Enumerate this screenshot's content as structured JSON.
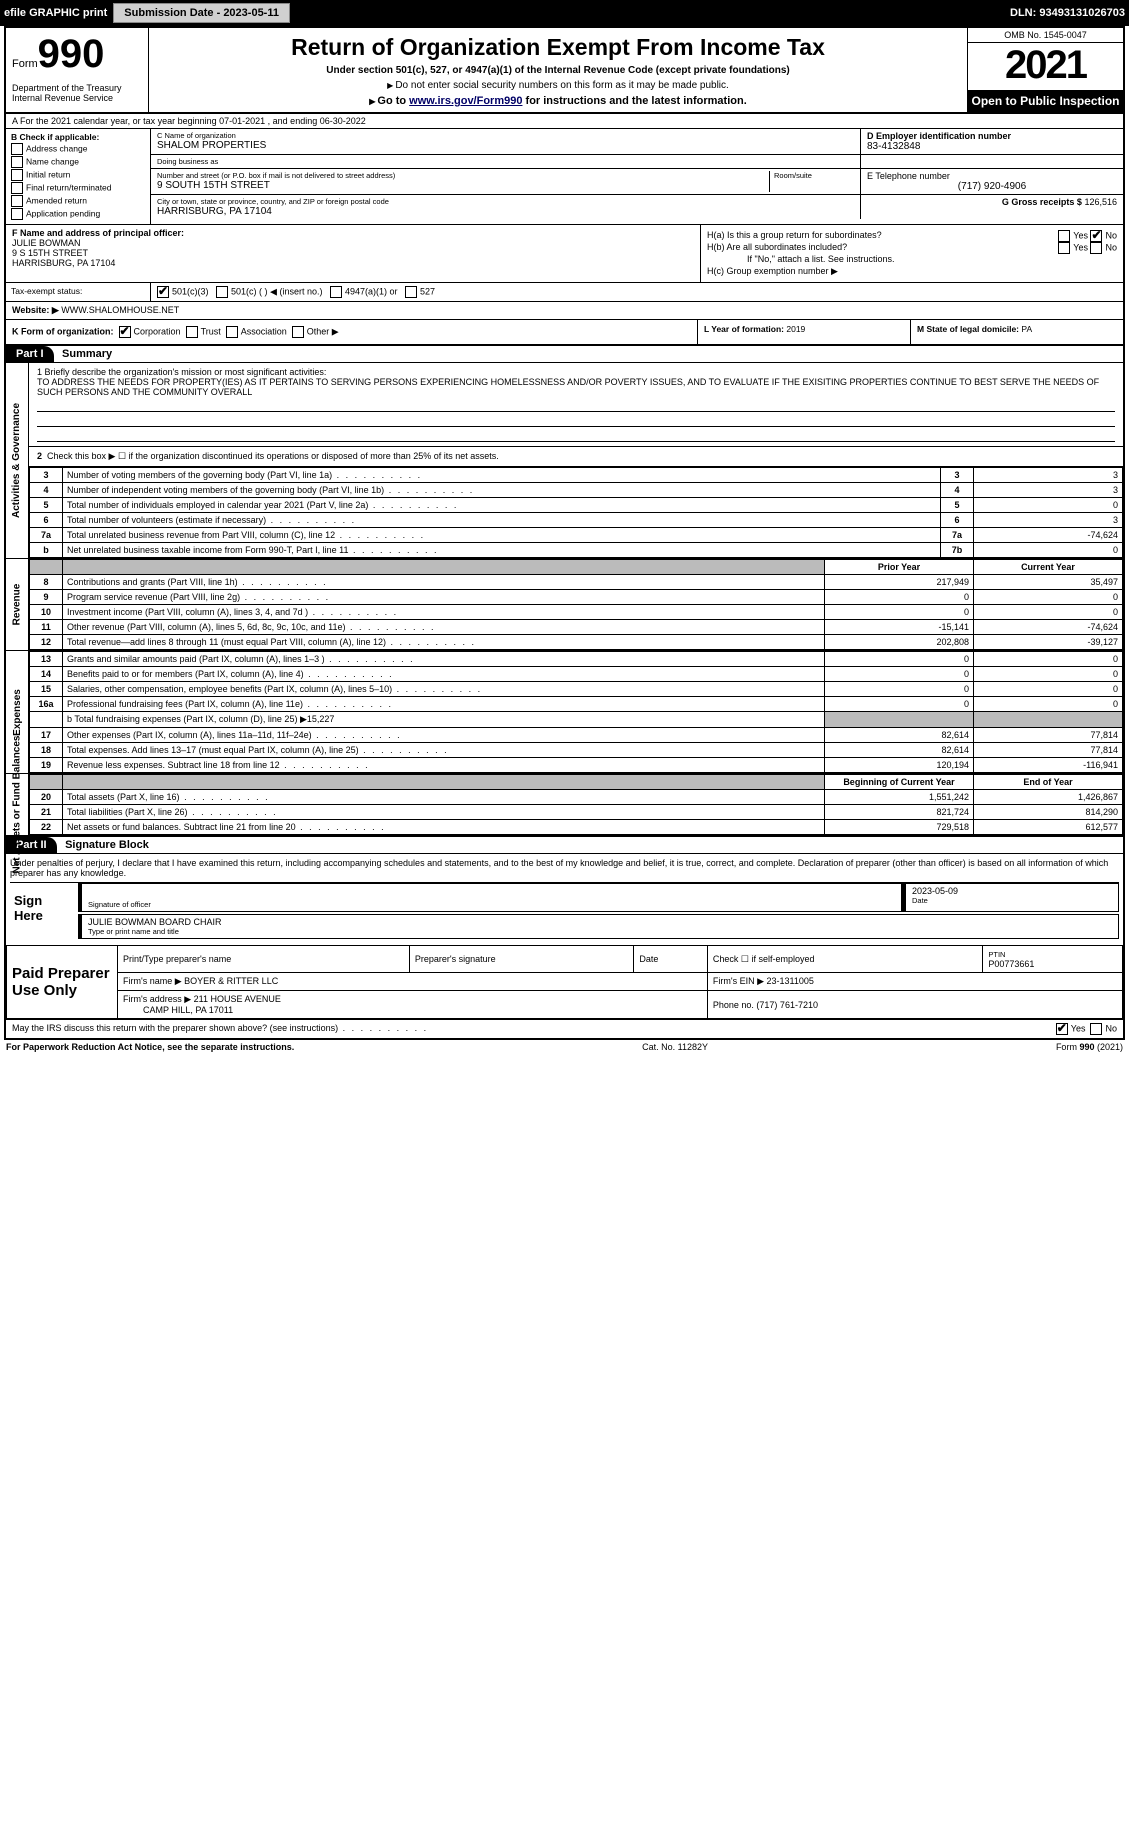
{
  "topbar": {
    "efile": "efile GRAPHIC print",
    "submission_btn": "Submission Date - 2023-05-11",
    "dln": "DLN: 93493131026703"
  },
  "header": {
    "form_word": "Form",
    "form_num": "990",
    "dept": "Department of the Treasury Internal Revenue Service",
    "title": "Return of Organization Exempt From Income Tax",
    "sub1": "Under section 501(c), 527, or 4947(a)(1) of the Internal Revenue Code (except private foundations)",
    "sub2": "Do not enter social security numbers on this form as it may be made public.",
    "sub3_pre": "Go to ",
    "sub3_link": "www.irs.gov/Form990",
    "sub3_post": " for instructions and the latest information.",
    "omb": "OMB No. 1545-0047",
    "year": "2021",
    "inspection": "Open to Public Inspection"
  },
  "row_a": "A For the 2021 calendar year, or tax year beginning 07-01-2021   , and ending 06-30-2022",
  "col_b": {
    "head": "B Check if applicable:",
    "opts": [
      "Address change",
      "Name change",
      "Initial return",
      "Final return/terminated",
      "Amended return",
      "Application pending"
    ]
  },
  "c": {
    "name_lbl": "C Name of organization",
    "name": "SHALOM PROPERTIES",
    "dba_lbl": "Doing business as",
    "dba": "",
    "street_lbl": "Number and street (or P.O. box if mail is not delivered to street address)",
    "room_lbl": "Room/suite",
    "street": "9 SOUTH 15TH STREET",
    "city_lbl": "City or town, state or province, country, and ZIP or foreign postal code",
    "city": "HARRISBURG, PA  17104"
  },
  "d": {
    "lbl": "D Employer identification number",
    "val": "83-4132848"
  },
  "e": {
    "lbl": "E Telephone number",
    "val": "(717) 920-4906"
  },
  "g": {
    "lbl": "G Gross receipts $",
    "val": "126,516"
  },
  "f": {
    "lbl": "F  Name and address of principal officer:",
    "name": "JULIE BOWMAN",
    "addr1": "9 S 15TH STREET",
    "addr2": "HARRISBURG, PA  17104"
  },
  "h": {
    "a": "H(a)  Is this a group return for subordinates?",
    "b": "H(b)  Are all subordinates included?",
    "b_note": "If \"No,\" attach a list. See instructions.",
    "c": "H(c)  Group exemption number ▶",
    "yes": "Yes",
    "no": "No"
  },
  "i": {
    "lbl": "Tax-exempt status:",
    "c3": "501(c)(3)",
    "c": "501(c) (  ) ◀ (insert no.)",
    "a1": "4947(a)(1) or",
    "s527": "527"
  },
  "j": {
    "lbl": "Website: ▶",
    "val": "WWW.SHALOMHOUSE.NET"
  },
  "k": {
    "lbl": "K Form of organization:",
    "corp": "Corporation",
    "trust": "Trust",
    "assoc": "Association",
    "other": "Other ▶"
  },
  "l": {
    "lbl": "L Year of formation:",
    "val": "2019"
  },
  "m": {
    "lbl": "M State of legal domicile:",
    "val": "PA"
  },
  "part1": {
    "tag": "Part I",
    "title": "Summary"
  },
  "mission": {
    "lbl": "1 Briefly describe the organization's mission or most significant activities:",
    "text": "TO ADDRESS THE NEEDS FOR PROPERTY(IES) AS IT PERTAINS TO SERVING PERSONS EXPERIENCING HOMELESSNESS AND/OR POVERTY ISSUES, AND TO EVALUATE IF THE EXISITING PROPERTIES CONTINUE TO BEST SERVE THE NEEDS OF SUCH PERSONS AND THE COMMUNITY OVERALL"
  },
  "line2": "Check this box ▶ ☐  if the organization discontinued its operations or disposed of more than 25% of its net assets.",
  "side_labels": {
    "gov": "Activities & Governance",
    "rev": "Revenue",
    "exp": "Expenses",
    "net": "Net Assets or Fund Balances"
  },
  "gov_rows": [
    {
      "n": "3",
      "d": "Number of voting members of the governing body (Part VI, line 1a)",
      "b": "3",
      "v": "3"
    },
    {
      "n": "4",
      "d": "Number of independent voting members of the governing body (Part VI, line 1b)",
      "b": "4",
      "v": "3"
    },
    {
      "n": "5",
      "d": "Total number of individuals employed in calendar year 2021 (Part V, line 2a)",
      "b": "5",
      "v": "0"
    },
    {
      "n": "6",
      "d": "Total number of volunteers (estimate if necessary)",
      "b": "6",
      "v": "3"
    },
    {
      "n": "7a",
      "d": "Total unrelated business revenue from Part VIII, column (C), line 12",
      "b": "7a",
      "v": "-74,624"
    },
    {
      "n": "b",
      "d": "Net unrelated business taxable income from Form 990-T, Part I, line 11",
      "b": "7b",
      "v": "0"
    }
  ],
  "py_hdr": "Prior Year",
  "cy_hdr": "Current Year",
  "rev_rows": [
    {
      "n": "8",
      "d": "Contributions and grants (Part VIII, line 1h)",
      "p": "217,949",
      "c": "35,497"
    },
    {
      "n": "9",
      "d": "Program service revenue (Part VIII, line 2g)",
      "p": "0",
      "c": "0"
    },
    {
      "n": "10",
      "d": "Investment income (Part VIII, column (A), lines 3, 4, and 7d )",
      "p": "0",
      "c": "0"
    },
    {
      "n": "11",
      "d": "Other revenue (Part VIII, column (A), lines 5, 6d, 8c, 9c, 10c, and 11e)",
      "p": "-15,141",
      "c": "-74,624"
    },
    {
      "n": "12",
      "d": "Total revenue—add lines 8 through 11 (must equal Part VIII, column (A), line 12)",
      "p": "202,808",
      "c": "-39,127"
    }
  ],
  "exp_rows": [
    {
      "n": "13",
      "d": "Grants and similar amounts paid (Part IX, column (A), lines 1–3 )",
      "p": "0",
      "c": "0"
    },
    {
      "n": "14",
      "d": "Benefits paid to or for members (Part IX, column (A), line 4)",
      "p": "0",
      "c": "0"
    },
    {
      "n": "15",
      "d": "Salaries, other compensation, employee benefits (Part IX, column (A), lines 5–10)",
      "p": "0",
      "c": "0"
    },
    {
      "n": "16a",
      "d": "Professional fundraising fees (Part IX, column (A), line 11e)",
      "p": "0",
      "c": "0"
    }
  ],
  "exp_b": "b  Total fundraising expenses (Part IX, column (D), line 25) ▶15,227",
  "exp_rows2": [
    {
      "n": "17",
      "d": "Other expenses (Part IX, column (A), lines 11a–11d, 11f–24e)",
      "p": "82,614",
      "c": "77,814"
    },
    {
      "n": "18",
      "d": "Total expenses. Add lines 13–17 (must equal Part IX, column (A), line 25)",
      "p": "82,614",
      "c": "77,814"
    },
    {
      "n": "19",
      "d": "Revenue less expenses. Subtract line 18 from line 12",
      "p": "120,194",
      "c": "-116,941"
    }
  ],
  "boy_hdr": "Beginning of Current Year",
  "eoy_hdr": "End of Year",
  "net_rows": [
    {
      "n": "20",
      "d": "Total assets (Part X, line 16)",
      "p": "1,551,242",
      "c": "1,426,867"
    },
    {
      "n": "21",
      "d": "Total liabilities (Part X, line 26)",
      "p": "821,724",
      "c": "814,290"
    },
    {
      "n": "22",
      "d": "Net assets or fund balances. Subtract line 21 from line 20",
      "p": "729,518",
      "c": "612,577"
    }
  ],
  "part2": {
    "tag": "Part II",
    "title": "Signature Block"
  },
  "sig": {
    "perjury": "Under penalties of perjury, I declare that I have examined this return, including accompanying schedules and statements, and to the best of my knowledge and belief, it is true, correct, and complete. Declaration of preparer (other than officer) is based on all information of which preparer has any knowledge.",
    "here": "Sign Here",
    "officer_sig": "Signature of officer",
    "date_lbl": "Date",
    "date": "2023-05-09",
    "name": "JULIE BOWMAN BOARD CHAIR",
    "type_lbl": "Type or print name and title"
  },
  "paid": {
    "title": "Paid Preparer Use Only",
    "h1": "Print/Type preparer's name",
    "h2": "Preparer's signature",
    "h3": "Date",
    "h4": "Check ☐ if self-employed",
    "h5": "PTIN",
    "ptin": "P00773661",
    "firm_name_lbl": "Firm's name    ▶",
    "firm_name": "BOYER & RITTER LLC",
    "firm_ein_lbl": "Firm's EIN ▶",
    "firm_ein": "23-1311005",
    "firm_addr_lbl": "Firm's address ▶",
    "firm_addr1": "211 HOUSE AVENUE",
    "firm_addr2": "CAMP HILL, PA  17011",
    "phone_lbl": "Phone no.",
    "phone": "(717) 761-7210"
  },
  "discuss": "May the IRS discuss this return with the preparer shown above? (see instructions)",
  "footer": {
    "l": "For Paperwork Reduction Act Notice, see the separate instructions.",
    "m": "Cat. No. 11282Y",
    "r": "Form 990 (2021)"
  }
}
